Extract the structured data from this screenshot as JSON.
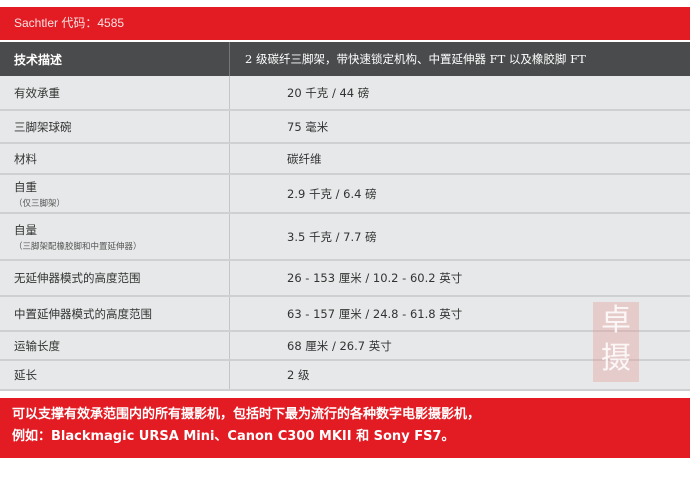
{
  "top_bar": {
    "title": "Sachtler 代码：4585"
  },
  "table": {
    "header": {
      "label": "技术描述",
      "value": "2 级碳纤三脚架，带快速锁定机构、中置延伸器 FT 以及橡胶脚 FT"
    },
    "rows": [
      {
        "label": "有效承重",
        "sub": "",
        "value": "20 千克 / 44 磅"
      },
      {
        "label": "三脚架球碗",
        "sub": "",
        "value": "75 毫米"
      },
      {
        "label": "材料",
        "sub": "",
        "value": "碳纤维"
      },
      {
        "label": "自重",
        "sub": "（仅三脚架）",
        "value": "2.9 千克 / 6.4 磅"
      },
      {
        "label": "自量",
        "sub": "（三脚架配橡胶脚和中置延伸器）",
        "value": "3.5 千克 / 7.7 磅"
      },
      {
        "label": "无延伸器模式的高度范围",
        "sub": "",
        "value": "26 - 153 厘米 / 10.2 - 60.2 英寸"
      },
      {
        "label": "中置延伸器模式的高度范围",
        "sub": "",
        "value": "63 - 157 厘米 / 24.8 - 61.8 英寸"
      },
      {
        "label": "运输长度",
        "sub": "",
        "value": "68 厘米 / 26.7 英寸"
      },
      {
        "label": "延长",
        "sub": "",
        "value": "2 级"
      }
    ]
  },
  "bottom": {
    "line1": "可以支撑有效承范围内的所有摄影机，包括时下最为流行的各种数字电影摄影机，",
    "line2": "例如：Blackmagic URSA Mini、Canon C300 MKII 和 Sony FS7。"
  },
  "seal": {
    "text": "卓摄"
  },
  "colors": {
    "accent": "#e31b23",
    "header": "#4a4b4d",
    "row": "#e7e8e9"
  }
}
